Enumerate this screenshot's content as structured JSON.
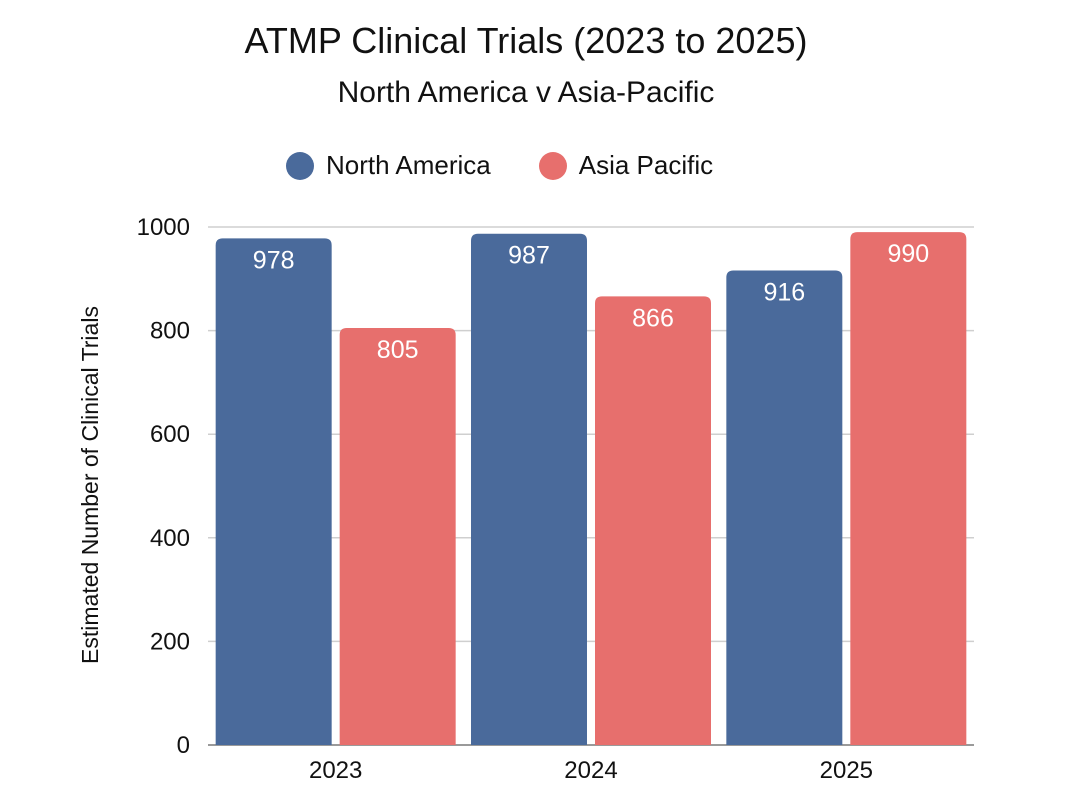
{
  "chart_data": {
    "type": "bar",
    "title": "ATMP Clinical Trials (2023 to 2025)",
    "subtitle": "North America v Asia-Pacific",
    "categories": [
      "2023",
      "2024",
      "2025"
    ],
    "series": [
      {
        "name": "North America",
        "color": "#4a6a9b",
        "values": [
          978,
          987,
          916
        ]
      },
      {
        "name": "Asia Pacific",
        "color": "#e76f6d",
        "values": [
          805,
          866,
          990
        ]
      }
    ],
    "xlabel": "",
    "ylabel": "Estimated Number of Clinical Trials",
    "ylim": [
      0,
      1000
    ],
    "yticks": [
      0,
      200,
      400,
      600,
      800,
      1000
    ],
    "grid": true,
    "legend_position": "top-center"
  }
}
